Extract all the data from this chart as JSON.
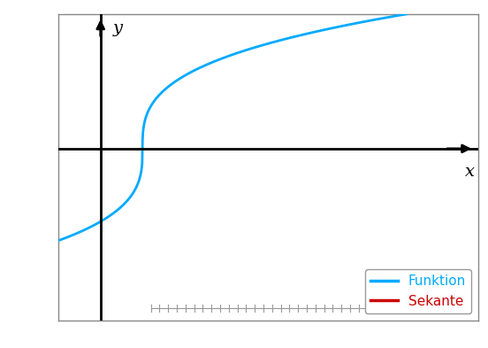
{
  "xlabel": "x",
  "ylabel": "y",
  "x_range": [
    -0.5,
    4.5
  ],
  "y_range": [
    -2.8,
    2.2
  ],
  "func_color": "#00AAFF",
  "sekante_color": "#CC0000",
  "func_linewidth": 2.0,
  "legend_labels": [
    "Funktion",
    "Sekante"
  ],
  "legend_colors": [
    "#00AAFF",
    "#CC0000"
  ],
  "background_color": "#FFFFFF",
  "axis_color": "#000000",
  "border_color": "#888888",
  "axis_origin_x": 0.0,
  "axis_origin_y": 0.0,
  "y_axis_x_pos": -0.1,
  "x_axis_y_pos": -0.3
}
